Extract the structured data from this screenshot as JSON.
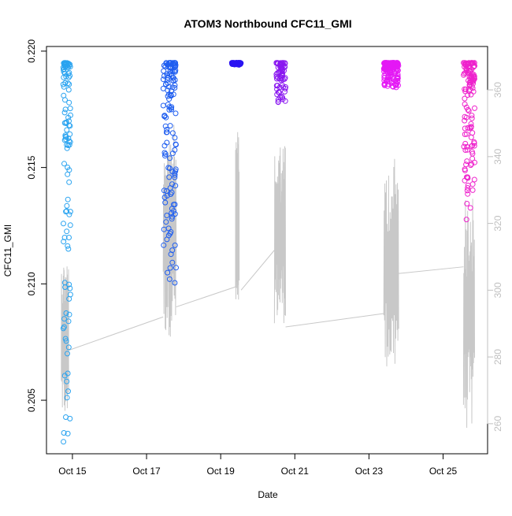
{
  "chart_data": {
    "type": "scatter",
    "title": "ATOM3 Northbound CFC11_GMI",
    "xlabel": "Date",
    "ylabel": "CFC11_GMI",
    "x_ticks": [
      "Oct 15",
      "Oct 17",
      "Oct 19",
      "Oct 21",
      "Oct 23",
      "Oct 25"
    ],
    "y_ticks": [
      "0.205",
      "0.210",
      "0.215",
      "0.220"
    ],
    "y2_ticks": [
      "260",
      "280",
      "300",
      "320",
      "340",
      "360"
    ],
    "x_range": [
      "Oct 14.3",
      "Oct 26.2"
    ],
    "ylim": [
      0.2027,
      0.2202
    ],
    "y2lim": [
      251,
      373
    ],
    "colors": {
      "secondary_line": "#c8c8c8",
      "axis": "#000000",
      "secondary_axis": "#c0c0c0"
    },
    "series": [
      {
        "x_start": 14.75,
        "x_end": 14.95,
        "y_top": 0.2195,
        "y_low": 0.2029,
        "color": "#29a3f0",
        "n": 110
      },
      {
        "x_start": 17.45,
        "x_end": 17.8,
        "y_top": 0.2195,
        "y_low": 0.21,
        "color": "#1f5ef0",
        "n": 140
      },
      {
        "x_start": 19.3,
        "x_end": 19.55,
        "y_top": 0.2195,
        "y_low": 0.2194,
        "color": "#2a14f2",
        "n": 60
      },
      {
        "x_start": 20.5,
        "x_end": 20.75,
        "y_top": 0.2195,
        "y_low": 0.2177,
        "color": "#8a18f0",
        "n": 70
      },
      {
        "x_start": 23.4,
        "x_end": 23.8,
        "y_top": 0.2195,
        "y_low": 0.2184,
        "color": "#e418f5",
        "n": 150
      },
      {
        "x_start": 25.55,
        "x_end": 25.85,
        "y_top": 0.2195,
        "y_low": 0.2127,
        "color": "#ee22cc",
        "n": 130
      }
    ],
    "secondary_series": {
      "name": "",
      "segments": [
        {
          "x_start": 14.7,
          "x_end": 14.9,
          "low": 262,
          "high": 310
        },
        {
          "x_start": 17.45,
          "x_end": 17.8,
          "low": 286,
          "high": 350
        },
        {
          "x_start": 19.4,
          "x_end": 19.5,
          "low": 297,
          "high": 352
        },
        {
          "x_start": 20.45,
          "x_end": 20.75,
          "low": 290,
          "high": 345
        },
        {
          "x_start": 23.4,
          "x_end": 23.8,
          "low": 275,
          "high": 340
        },
        {
          "x_start": 25.55,
          "x_end": 25.85,
          "low": 258,
          "high": 328
        }
      ],
      "connectors": [
        {
          "x1": 14.9,
          "y1": 282,
          "x2": 17.45,
          "y2": 292
        },
        {
          "x1": 17.8,
          "y1": 295,
          "x2": 19.4,
          "y2": 301
        },
        {
          "x1": 19.55,
          "y1": 300,
          "x2": 20.45,
          "y2": 312
        },
        {
          "x1": 20.75,
          "y1": 289,
          "x2": 23.4,
          "y2": 293
        },
        {
          "x1": 23.8,
          "y1": 305,
          "x2": 25.55,
          "y2": 307
        }
      ]
    }
  }
}
